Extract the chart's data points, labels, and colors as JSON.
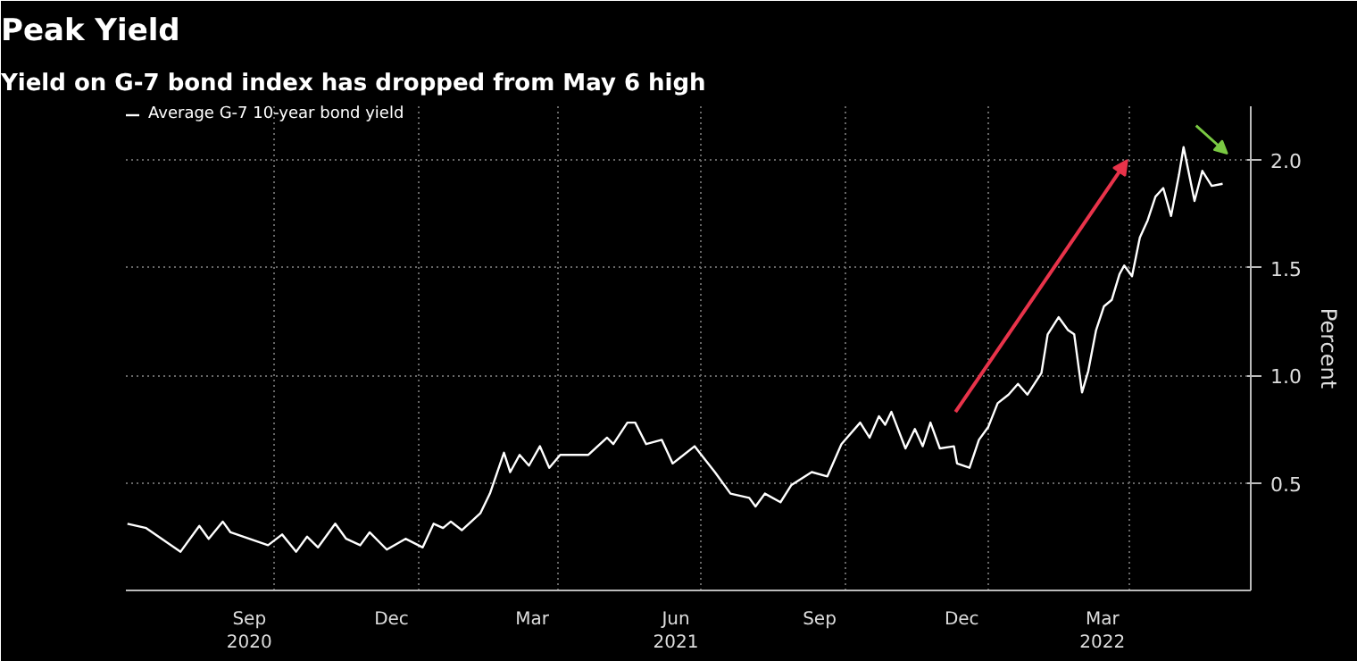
{
  "chart_data": {
    "type": "line",
    "title": "Peak Yield",
    "subtitle": "Yield on G-7 bond index has dropped from May 6 high",
    "ylabel": "Percent",
    "x": [
      "2020-06-29",
      "2020-07-11",
      "2020-08-02",
      "2020-08-14",
      "2020-08-20",
      "2020-08-29",
      "2020-09-03",
      "2020-09-27",
      "2020-10-06",
      "2020-10-15",
      "2020-10-22",
      "2020-10-29",
      "2020-11-09",
      "2020-11-16",
      "2020-11-25",
      "2020-12-01",
      "2020-12-12",
      "2020-12-24",
      "2021-01-04",
      "2021-01-11",
      "2021-01-17",
      "2021-01-22",
      "2021-01-29",
      "2021-02-10",
      "2021-02-16",
      "2021-02-25",
      "2021-03-01",
      "2021-03-07",
      "2021-03-13",
      "2021-03-20",
      "2021-03-26",
      "2021-04-02",
      "2021-04-20",
      "2021-05-02",
      "2021-05-06",
      "2021-05-15",
      "2021-05-20",
      "2021-05-27",
      "2021-06-06",
      "2021-06-13",
      "2021-06-27",
      "2021-07-10",
      "2021-07-20",
      "2021-08-01",
      "2021-08-05",
      "2021-08-11",
      "2021-08-21",
      "2021-08-28",
      "2021-09-10",
      "2021-09-20",
      "2021-09-29",
      "2021-10-11",
      "2021-10-17",
      "2021-10-23",
      "2021-10-27",
      "2021-10-31",
      "2021-11-09",
      "2021-11-15",
      "2021-11-20",
      "2021-11-25",
      "2021-12-01",
      "2021-12-10",
      "2021-12-12",
      "2021-12-20",
      "2021-12-26",
      "2022-01-01",
      "2022-01-07",
      "2022-01-14",
      "2022-01-20",
      "2022-01-26",
      "2022-02-04",
      "2022-02-08",
      "2022-02-15",
      "2022-02-21",
      "2022-02-25",
      "2022-03-02",
      "2022-03-06",
      "2022-03-11",
      "2022-03-16",
      "2022-03-21",
      "2022-03-26",
      "2022-03-29",
      "2022-04-03",
      "2022-04-08",
      "2022-04-13",
      "2022-04-18",
      "2022-04-23",
      "2022-04-28",
      "2022-05-03",
      "2022-05-06",
      "2022-05-13",
      "2022-05-18",
      "2022-05-24",
      "2022-05-31"
    ],
    "series": [
      {
        "name": "Average G-7 10-year bond yield",
        "color": "#ffffff",
        "values": [
          0.31,
          0.29,
          0.18,
          0.3,
          0.24,
          0.32,
          0.27,
          0.21,
          0.26,
          0.18,
          0.25,
          0.2,
          0.31,
          0.24,
          0.21,
          0.27,
          0.19,
          0.24,
          0.2,
          0.31,
          0.29,
          0.32,
          0.28,
          0.36,
          0.45,
          0.64,
          0.55,
          0.63,
          0.58,
          0.67,
          0.57,
          0.63,
          0.63,
          0.71,
          0.68,
          0.78,
          0.78,
          0.68,
          0.7,
          0.59,
          0.67,
          0.55,
          0.45,
          0.43,
          0.39,
          0.45,
          0.41,
          0.49,
          0.55,
          0.53,
          0.68,
          0.78,
          0.71,
          0.81,
          0.77,
          0.83,
          0.66,
          0.75,
          0.67,
          0.78,
          0.66,
          0.67,
          0.59,
          0.57,
          0.7,
          0.76,
          0.87,
          0.91,
          0.96,
          0.91,
          1.01,
          1.19,
          1.27,
          1.21,
          1.19,
          0.92,
          1.02,
          1.21,
          1.32,
          1.35,
          1.47,
          1.51,
          1.46,
          1.64,
          1.72,
          1.83,
          1.87,
          1.74,
          1.93,
          2.06,
          1.81,
          1.95,
          1.88,
          1.89
        ]
      }
    ],
    "xlim": [
      "2020-06-28",
      "2022-06-18"
    ],
    "xticks": [
      {
        "value": "2020-09-15",
        "label": "Sep\n2020"
      },
      {
        "value": "2020-12-15",
        "label": "Dec"
      },
      {
        "value": "2021-03-15",
        "label": "Mar"
      },
      {
        "value": "2021-06-15",
        "label": "Jun\n2021"
      },
      {
        "value": "2021-09-15",
        "label": "Sep"
      },
      {
        "value": "2021-12-15",
        "label": "Dec"
      },
      {
        "value": "2022-03-15",
        "label": "Mar\n2022"
      },
      {
        "value": "2020-10-01",
        "label": null
      },
      {
        "value": "2021-01-01",
        "label": null
      },
      {
        "value": "2021-04-01",
        "label": null
      },
      {
        "value": "2021-07-01",
        "label": null
      },
      {
        "value": "2021-10-01",
        "label": null
      },
      {
        "value": "2022-01-01",
        "label": null
      },
      {
        "value": "2022-04-01",
        "label": null
      }
    ],
    "ylim": [
      0,
      2.25
    ],
    "yticks": [
      0.5,
      {
        "value": 1,
        "label": "1.0"
      },
      1.5,
      {
        "value": 2,
        "label": "2.0"
      }
    ],
    "grid": true,
    "legend": "top left",
    "marker": "none",
    "line_style": "solid"
  }
}
